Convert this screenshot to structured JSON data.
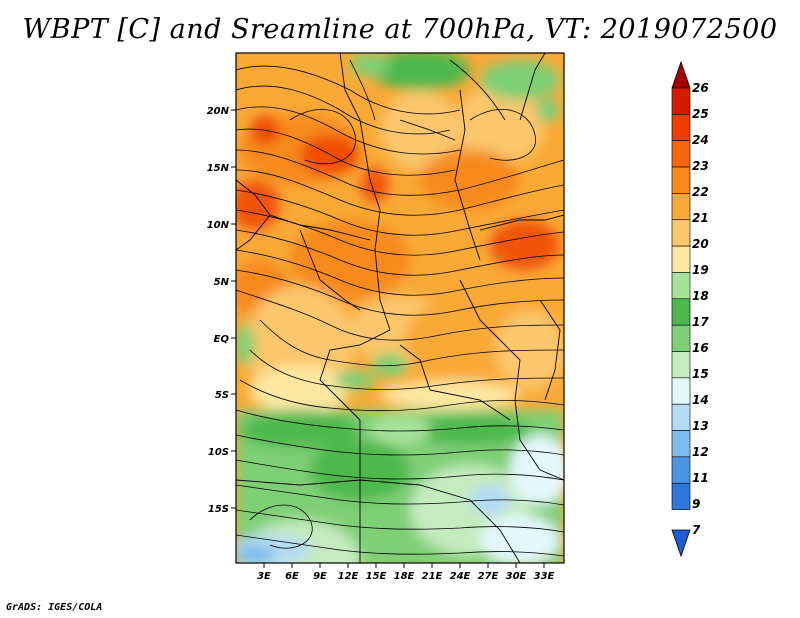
{
  "title": "WBPT [C] and Sreamline at 700hPa, VT: 2019072500",
  "footer": "GrADS: IGES/COLA",
  "map": {
    "lat_labels": [
      "20N",
      "15N",
      "10N",
      "5N",
      "EQ",
      "5S",
      "10S",
      "15S"
    ],
    "lon_labels": [
      "3E",
      "6E",
      "9E",
      "12E",
      "15E",
      "18E",
      "21E",
      "24E",
      "27E",
      "30E",
      "33E"
    ]
  },
  "colorbar": {
    "labels": [
      "26",
      "25",
      "24",
      "23",
      "22",
      "21",
      "20",
      "19",
      "18",
      "17",
      "16",
      "15",
      "14",
      "13",
      "12",
      "11",
      "9",
      "7"
    ],
    "colors": [
      "#a50000",
      "#d41c00",
      "#ee3d00",
      "#f6660d",
      "#f78a1a",
      "#f9a936",
      "#fbc66c",
      "#fde7a1",
      "#a7e29a",
      "#4db84e",
      "#7fcf76",
      "#c5ecbf",
      "#e4f7fb",
      "#b4dcf5",
      "#7ebbee",
      "#4a96e4",
      "#2f78db",
      "#1d5ed4"
    ]
  }
}
